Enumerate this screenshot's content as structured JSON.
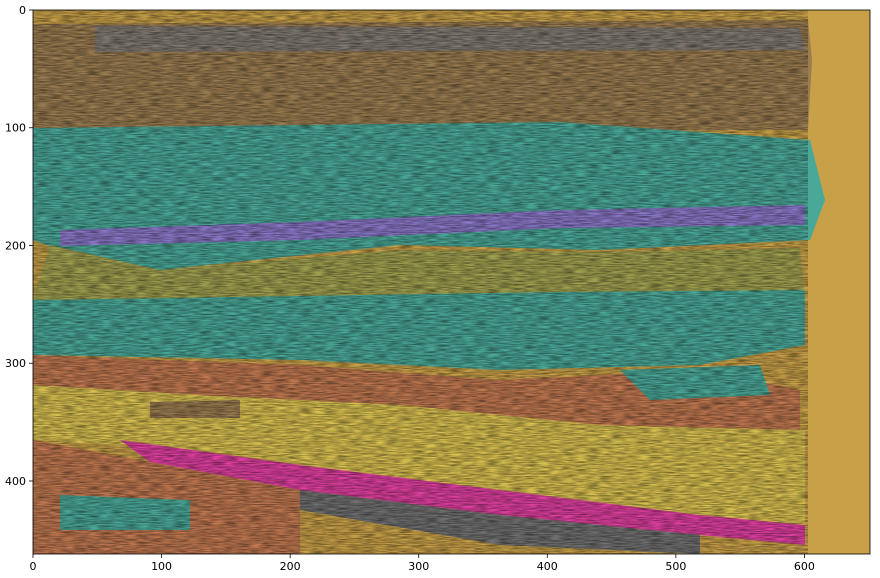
{
  "figure": {
    "type": "image-plot",
    "content": "seismic section with semi-transparent colored facies overlay"
  },
  "axes": {
    "x_ticks": [
      0,
      100,
      200,
      300,
      400,
      500,
      600
    ],
    "y_ticks": [
      0,
      100,
      200,
      300,
      400
    ],
    "xlim": [
      0,
      651
    ],
    "ylim": [
      462,
      0
    ]
  },
  "facies_colors": {
    "tan": "#c8a048",
    "brown": "#9a7c50",
    "teal": "#4aa898",
    "purple": "#8a78c8",
    "olive": "#a0a050",
    "orange": "#c07850",
    "yellow": "#d8c050",
    "magenta": "#e040a0",
    "gray": "#707070"
  }
}
